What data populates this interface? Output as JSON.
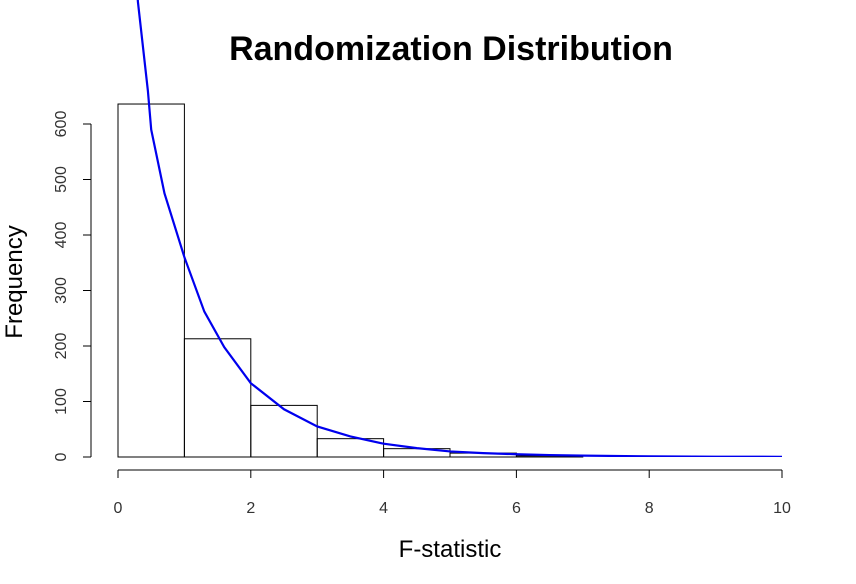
{
  "chart_data": {
    "type": "bar",
    "title": "Randomization Distribution",
    "xlabel": "F-statistic",
    "ylabel": "Frequency",
    "xlim": [
      0,
      10
    ],
    "ylim": [
      0,
      600
    ],
    "x_ticks": [
      "0",
      "2",
      "4",
      "6",
      "8",
      "10"
    ],
    "y_ticks": [
      "0",
      "100",
      "200",
      "300",
      "400",
      "500",
      "600"
    ],
    "bin_edges": [
      0,
      1,
      2,
      3,
      4,
      5,
      6,
      7
    ],
    "values": [
      636,
      213,
      93,
      33,
      15,
      7,
      2
    ],
    "density_curve": {
      "color": "#0000ee",
      "points": [
        [
          0.2,
          1000
        ],
        [
          0.3,
          820
        ],
        [
          0.45,
          660
        ],
        [
          0.5,
          590
        ],
        [
          0.7,
          475
        ],
        [
          1.0,
          360
        ],
        [
          1.3,
          262
        ],
        [
          1.6,
          198
        ],
        [
          2.0,
          133
        ],
        [
          2.5,
          86
        ],
        [
          3.0,
          55
        ],
        [
          3.5,
          37
        ],
        [
          4.0,
          24
        ],
        [
          4.5,
          16
        ],
        [
          5.0,
          10
        ],
        [
          5.5,
          7
        ],
        [
          6.0,
          5
        ],
        [
          6.5,
          3.5
        ],
        [
          7.0,
          2.5
        ],
        [
          8.0,
          1.2
        ],
        [
          9.0,
          0.6
        ],
        [
          10.0,
          0.3
        ]
      ]
    }
  }
}
